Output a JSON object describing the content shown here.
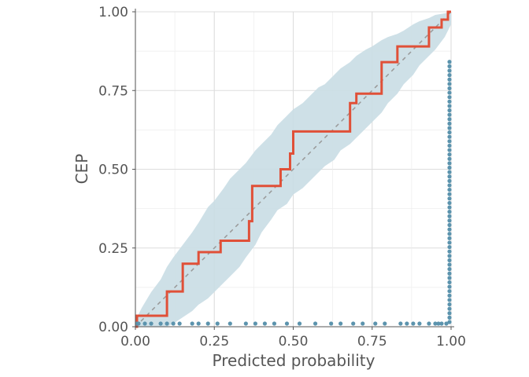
{
  "chart_data": {
    "type": "line",
    "title": "",
    "xlabel": "Predicted probability",
    "ylabel": "CEP",
    "xlim": [
      0,
      1
    ],
    "ylim": [
      0,
      1
    ],
    "x_ticks": [
      "0.00",
      "0.25",
      "0.50",
      "0.75",
      "1.00"
    ],
    "y_ticks": [
      "0.00",
      "0.25",
      "0.50",
      "0.75",
      "1.00"
    ],
    "grid": true,
    "legend": "none",
    "colors": {
      "cep": "#e05038",
      "band": "#c9dde4",
      "points": "#5b93ad",
      "diagonal": "#999999",
      "grid": "#e6e6e6"
    },
    "reference_line": {
      "from": [
        0,
        0
      ],
      "to": [
        1,
        1
      ],
      "style": "dashed"
    },
    "cep_step": {
      "x": [
        0,
        0.005,
        0.005,
        0.1,
        0.1,
        0.15,
        0.15,
        0.2,
        0.2,
        0.27,
        0.27,
        0.36,
        0.36,
        0.37,
        0.37,
        0.46,
        0.46,
        0.49,
        0.49,
        0.5,
        0.5,
        0.68,
        0.68,
        0.7,
        0.7,
        0.78,
        0.78,
        0.83,
        0.83,
        0.93,
        0.93,
        0.97,
        0.97,
        0.99,
        0.99,
        1.0
      ],
      "y": [
        0,
        0,
        0.035,
        0.035,
        0.112,
        0.112,
        0.2,
        0.2,
        0.237,
        0.237,
        0.273,
        0.273,
        0.335,
        0.335,
        0.447,
        0.447,
        0.5,
        0.5,
        0.55,
        0.55,
        0.62,
        0.62,
        0.71,
        0.71,
        0.74,
        0.74,
        0.84,
        0.84,
        0.89,
        0.89,
        0.95,
        0.95,
        0.975,
        0.975,
        1.0,
        1.0
      ]
    },
    "band": {
      "x": [
        0,
        0.02,
        0.05,
        0.08,
        0.1,
        0.12,
        0.15,
        0.18,
        0.2,
        0.23,
        0.25,
        0.28,
        0.3,
        0.33,
        0.35,
        0.38,
        0.4,
        0.43,
        0.45,
        0.48,
        0.5,
        0.53,
        0.55,
        0.58,
        0.6,
        0.63,
        0.65,
        0.68,
        0.7,
        0.73,
        0.75,
        0.78,
        0.8,
        0.83,
        0.85,
        0.88,
        0.9,
        0.93,
        0.95,
        0.98,
        1.0
      ],
      "upper": [
        0.02,
        0.06,
        0.11,
        0.15,
        0.19,
        0.22,
        0.26,
        0.3,
        0.33,
        0.38,
        0.4,
        0.44,
        0.47,
        0.5,
        0.52,
        0.56,
        0.58,
        0.61,
        0.64,
        0.67,
        0.69,
        0.71,
        0.73,
        0.76,
        0.77,
        0.8,
        0.82,
        0.84,
        0.86,
        0.88,
        0.89,
        0.91,
        0.92,
        0.93,
        0.94,
        0.96,
        0.97,
        0.98,
        0.99,
        0.995,
        1.0
      ],
      "lower": [
        0.0,
        0.0,
        0.0,
        0.0,
        0.0,
        0.01,
        0.03,
        0.05,
        0.07,
        0.09,
        0.11,
        0.14,
        0.16,
        0.19,
        0.22,
        0.26,
        0.3,
        0.34,
        0.37,
        0.39,
        0.42,
        0.44,
        0.46,
        0.49,
        0.51,
        0.53,
        0.56,
        0.58,
        0.6,
        0.63,
        0.65,
        0.68,
        0.71,
        0.74,
        0.77,
        0.8,
        0.83,
        0.86,
        0.88,
        0.92,
        0.96
      ]
    },
    "observed": {
      "zero_x": [
        0.005,
        0.01,
        0.03,
        0.05,
        0.08,
        0.1,
        0.12,
        0.14,
        0.18,
        0.2,
        0.23,
        0.26,
        0.3,
        0.35,
        0.38,
        0.41,
        0.44,
        0.48,
        0.52,
        0.57,
        0.62,
        0.65,
        0.69,
        0.72,
        0.76,
        0.79,
        0.84,
        0.86,
        0.88,
        0.9,
        0.93,
        0.95,
        0.96,
        0.97,
        0.985
      ],
      "stack_x": 0.995,
      "stack_count": 60,
      "stack_step": 0.014
    }
  }
}
